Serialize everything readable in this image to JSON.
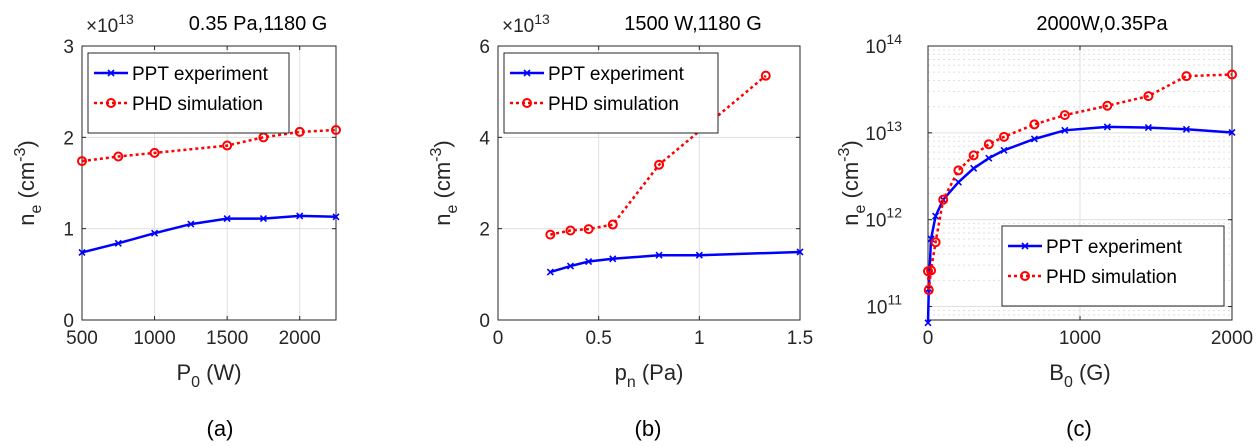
{
  "colors": {
    "experiment": "#0000ff",
    "simulation": "#ff0000",
    "axis": "#262626",
    "grid": "#dfdfdf"
  },
  "chart_data": [
    {
      "id": "a",
      "type": "line",
      "title": "0.35 Pa,1180 G",
      "panel_label": "(a)",
      "xlabel": {
        "main": "P",
        "sub": "0",
        "rest": " (W)"
      },
      "ylabel": {
        "main": "n",
        "sub": "e",
        "rest": " (cm",
        "sup": "-3",
        "close": ")"
      },
      "multiplier": {
        "base": "×10",
        "exp": "13"
      },
      "xlim": [
        500,
        2250
      ],
      "ylim": [
        0,
        3
      ],
      "yscale": "linear",
      "xticks": [
        500,
        1000,
        1500,
        2000
      ],
      "xtick_labels": [
        "500",
        "1000",
        "1500",
        "2000"
      ],
      "yticks": [
        0,
        1,
        2,
        3
      ],
      "ytick_labels": [
        "0",
        "1",
        "2",
        "3"
      ],
      "grid": true,
      "legend_position": "top-left",
      "series": [
        {
          "name": "PPT experiment",
          "style": "experiment",
          "x": [
            500,
            750,
            1000,
            1250,
            1500,
            1750,
            2000,
            2250
          ],
          "y": [
            0.74,
            0.84,
            0.95,
            1.05,
            1.11,
            1.11,
            1.14,
            1.13
          ]
        },
        {
          "name": "PHD simulation",
          "style": "simulation",
          "x": [
            500,
            750,
            1000,
            1500,
            1750,
            2000,
            2250
          ],
          "y": [
            1.74,
            1.79,
            1.83,
            1.91,
            2.0,
            2.06,
            2.08
          ]
        }
      ]
    },
    {
      "id": "b",
      "type": "line",
      "title": "1500 W,1180 G",
      "panel_label": "(b)",
      "xlabel": {
        "main": "p",
        "sub": "n",
        "rest": " (Pa)"
      },
      "ylabel": {
        "main": "n",
        "sub": "e",
        "rest": " (cm",
        "sup": "-3",
        "close": ")"
      },
      "multiplier": {
        "base": "×10",
        "exp": "13"
      },
      "xlim": [
        0,
        1.5
      ],
      "ylim": [
        0,
        6
      ],
      "yscale": "linear",
      "xticks": [
        0,
        0.5,
        1,
        1.5
      ],
      "xtick_labels": [
        "0",
        "0.5",
        "1",
        "1.5"
      ],
      "yticks": [
        0,
        2,
        4,
        6
      ],
      "ytick_labels": [
        "0",
        "2",
        "4",
        "6"
      ],
      "grid": true,
      "legend_position": "top-left",
      "series": [
        {
          "name": "PPT experiment",
          "style": "experiment",
          "x": [
            0.26,
            0.36,
            0.45,
            0.57,
            0.8,
            1.0,
            1.5
          ],
          "y": [
            1.05,
            1.18,
            1.28,
            1.34,
            1.42,
            1.42,
            1.49
          ]
        },
        {
          "name": "PHD simulation",
          "style": "simulation",
          "x": [
            0.26,
            0.36,
            0.45,
            0.57,
            0.8,
            1.33
          ],
          "y": [
            1.87,
            1.96,
            1.99,
            2.09,
            3.4,
            5.35
          ]
        }
      ]
    },
    {
      "id": "c",
      "type": "line",
      "title": "2000W,0.35Pa",
      "panel_label": "(c)",
      "xlabel": {
        "main": "B",
        "sub": "0",
        "rest": " (G)"
      },
      "ylabel": {
        "main": "n",
        "sub": "e",
        "rest": " (cm",
        "sup": "-3",
        "close": ")"
      },
      "multiplier": null,
      "xlim": [
        0,
        2000
      ],
      "ylim": [
        70000000000.0,
        100000000000000.0
      ],
      "yscale": "log",
      "xticks": [
        0,
        1000,
        2000
      ],
      "xtick_labels": [
        "0",
        "1000",
        "2000"
      ],
      "yticks": [
        100000000000.0,
        1000000000000.0,
        10000000000000.0,
        100000000000000.0
      ],
      "ytick_labels": [
        {
          "base": "10",
          "exp": "11"
        },
        {
          "base": "10",
          "exp": "12"
        },
        {
          "base": "10",
          "exp": "13"
        },
        {
          "base": "10",
          "exp": "14"
        }
      ],
      "grid": true,
      "legend_position": "bottom-right",
      "series": [
        {
          "name": "PPT experiment",
          "style": "experiment",
          "x": [
            0,
            5,
            20,
            50,
            100,
            200,
            300,
            400,
            500,
            700,
            900,
            1180,
            1450,
            1700,
            2000
          ],
          "y": [
            65000000000.0,
            160000000000.0,
            600000000000.0,
            1100000000000.0,
            1700000000000.0,
            2700000000000.0,
            3900000000000.0,
            5100000000000.0,
            6300000000000.0,
            8500000000000.0,
            10700000000000.0,
            11700000000000.0,
            11500000000000.0,
            11000000000000.0,
            10100000000000.0
          ]
        },
        {
          "name": "PHD simulation",
          "style": "simulation",
          "x": [
            0,
            5,
            20,
            50,
            100,
            200,
            300,
            400,
            500,
            700,
            900,
            1180,
            1450,
            1700,
            2000
          ],
          "y": [
            255000000000.0,
            155000000000.0,
            260000000000.0,
            550000000000.0,
            1700000000000.0,
            3700000000000.0,
            5500000000000.0,
            7400000000000.0,
            9000000000000.0,
            12500000000000.0,
            16000000000000.0,
            20500000000000.0,
            26500000000000.0,
            45000000000000.0,
            47000000000000.0
          ]
        }
      ]
    }
  ]
}
